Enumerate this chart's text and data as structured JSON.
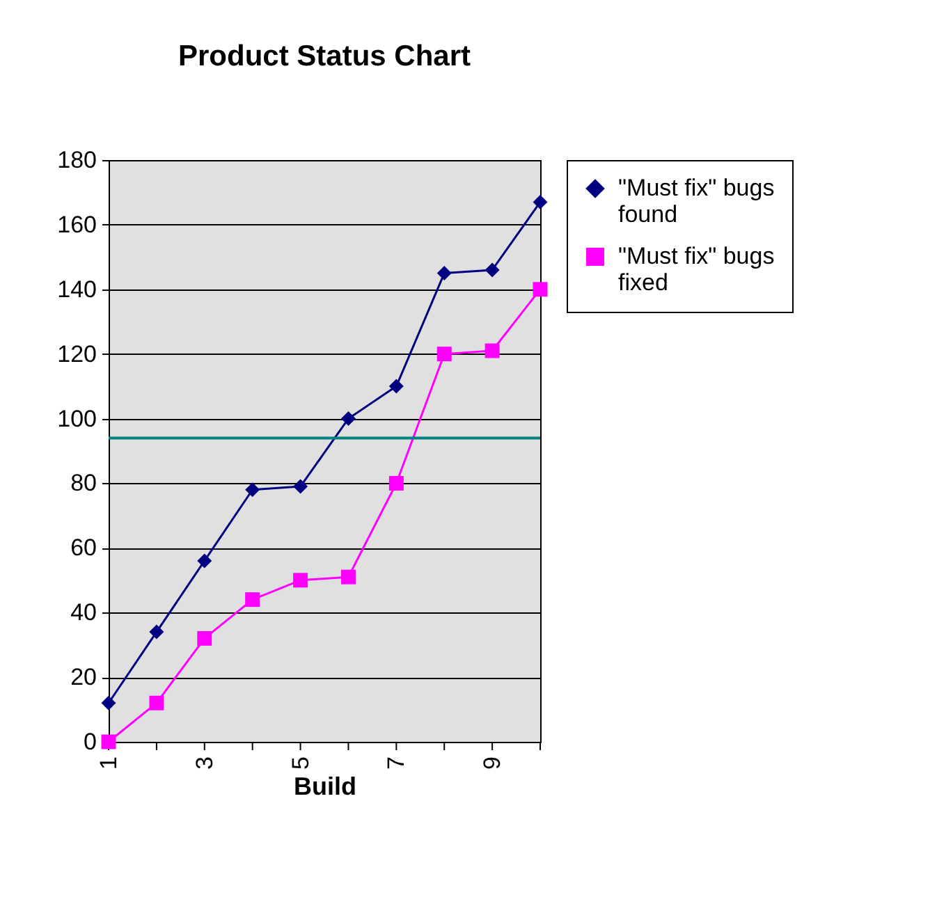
{
  "chart_data": {
    "type": "line",
    "title": "Product Status Chart",
    "xlabel": "Build",
    "x": [
      1,
      2,
      3,
      4,
      5,
      6,
      7,
      8,
      9,
      10
    ],
    "series": [
      {
        "name": "\"Must fix\" bugs found",
        "color": "#000080",
        "marker": "diamond",
        "values": [
          12,
          34,
          56,
          78,
          79,
          100,
          110,
          145,
          146,
          167
        ]
      },
      {
        "name": "\"Must fix\" bugs fixed",
        "color": "#ff00ff",
        "marker": "square",
        "values": [
          0,
          12,
          32,
          44,
          50,
          51,
          80,
          120,
          121,
          140
        ]
      }
    ],
    "xlim": [
      1,
      10
    ],
    "xticks": [
      1,
      {
        "value": 2,
        "label": null
      },
      3,
      {
        "value": 4,
        "label": null
      },
      5,
      {
        "value": 6,
        "label": null
      },
      7,
      {
        "value": 8,
        "label": null
      },
      9,
      {
        "value": 10,
        "label": null
      }
    ],
    "ylim": [
      0,
      180
    ],
    "yticks": [
      0,
      20,
      40,
      60,
      80,
      100,
      120,
      140,
      160,
      180
    ],
    "ref_lines": [
      {
        "axis": "y",
        "value": 94,
        "color": "#008080"
      }
    ],
    "grid": "y",
    "legend": "right",
    "line_style": "solid"
  }
}
